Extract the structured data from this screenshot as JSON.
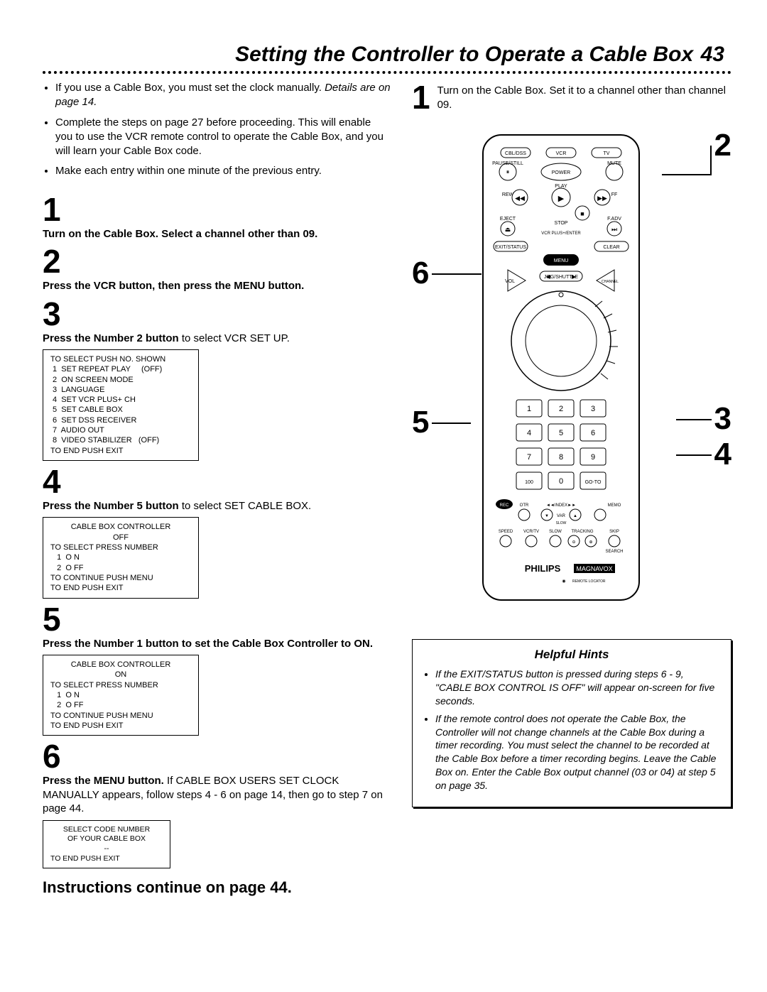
{
  "header": {
    "title": "Setting the Controller to Operate a Cable Box",
    "page": "43"
  },
  "intro": {
    "bullets": [
      {
        "plain": "If you use a Cable Box, you must set the clock manually. ",
        "ital": "Details are on page 14."
      },
      {
        "plain": "Complete the steps on page 27 before proceeding. This will enable you to use the VCR remote control to operate the Cable Box, and you will learn your Cable Box code."
      },
      {
        "plain": "Make each entry within one minute of the previous entry."
      }
    ]
  },
  "steps": {
    "s1": {
      "num": "1",
      "bold": "Turn on the Cable Box. Select a channel other than 09."
    },
    "s2": {
      "num": "2",
      "bold": "Press the VCR button, then press the MENU button."
    },
    "s3": {
      "num": "3",
      "bold": "Press the Number 2 button",
      "rest": " to select VCR SET UP."
    },
    "s4": {
      "num": "4",
      "bold": "Press the Number 5 button",
      "rest": " to select SET CABLE BOX."
    },
    "s5": {
      "num": "5",
      "bold": "Press the Number 1 button to set the Cable Box Controller to ON."
    },
    "s6": {
      "num": "6",
      "bold": "Press the MENU button.",
      "rest": " If CABLE BOX USERS SET CLOCK MANUALLY appears, follow steps 4 - 6  on page 14, then go to step 7 on page 44."
    }
  },
  "screens": {
    "s3_lines": [
      "TO SELECT PUSH NO. SHOWN",
      " 1  SET REPEAT PLAY     (OFF)",
      " 2  ON SCREEN MODE",
      " 3  LANGUAGE",
      " 4  SET VCR PLUS+ CH",
      " 5  SET CABLE BOX",
      " 6  SET DSS RECEIVER",
      " 7  AUDIO OUT",
      " 8  VIDEO STABILIZER   (OFF)",
      "TO END PUSH EXIT"
    ],
    "s4_lines": [
      "CABLE BOX CONTROLLER",
      "",
      "OFF",
      "",
      "TO SELECT PRESS NUMBER",
      "   1  O N",
      "   2  O FF",
      "",
      "TO CONTINUE PUSH MENU",
      "TO END PUSH EXIT"
    ],
    "s5_lines": [
      "CABLE BOX CONTROLLER",
      "",
      "ON",
      "",
      "TO SELECT PRESS NUMBER",
      "   1  O N",
      "   2  O FF",
      "",
      "TO CONTINUE PUSH MENU",
      "TO END PUSH EXIT"
    ],
    "s6_lines": [
      "SELECT CODE NUMBER",
      "OF YOUR CABLE BOX",
      "",
      "--",
      "",
      "TO END PUSH EXIT"
    ]
  },
  "continue_text": "Instructions continue on page 44.",
  "right": {
    "step1": {
      "num": "1",
      "text": "Turn on the Cable Box. Set it to a channel other than channel 09."
    },
    "callouts": {
      "c2": "2",
      "c3": "3",
      "c4": "4",
      "c5": "5",
      "c6": "6"
    }
  },
  "remote": {
    "top_row": [
      "CBL/DSS",
      "VCR",
      "TV"
    ],
    "power": "POWER",
    "mute": "MUTE",
    "pause": "PAUSE/STILL",
    "play": "PLAY",
    "rew": "REW",
    "ff": "FF",
    "eject": "EJECT",
    "fadv": "F.ADV",
    "stop": "STOP",
    "vcrplus": "VCR PLUS+/ENTER",
    "exit": "EXIT/STATUS",
    "clear": "CLEAR",
    "menu": "MENU",
    "vol": "VOL",
    "channel": "CHANNEL",
    "jog": "JOG/SHUTTLE",
    "nums": [
      "1",
      "2",
      "3",
      "4",
      "5",
      "6",
      "7",
      "8",
      "9",
      "100",
      "0",
      "GO-TO"
    ],
    "bottom_row1": [
      "REC",
      "OTR",
      "◄◄INDEX►►",
      "MEMO"
    ],
    "bottom_row2_labels": [
      "SPEED",
      "VCR/TV",
      "SLOW",
      "TRACKING",
      "SKIP"
    ],
    "search": "SEARCH",
    "brand": "PHILIPS",
    "brand2": "MAGNAVOX",
    "locator": "REMOTE LOCATOR"
  },
  "hints": {
    "title": "Helpful Hints",
    "items": [
      "If the EXIT/STATUS button is pressed during steps 6 - 9, \"CABLE BOX CONTROL IS OFF\" will appear on-screen for five seconds.",
      "If the remote control does not operate the Cable Box, the Controller will not change channels at the Cable Box during a timer recording. You must select the channel to be recorded at the Cable Box before a timer recording begins. Leave the Cable Box on. Enter the Cable Box output channel (03 or 04) at step 5 on page 35."
    ]
  }
}
